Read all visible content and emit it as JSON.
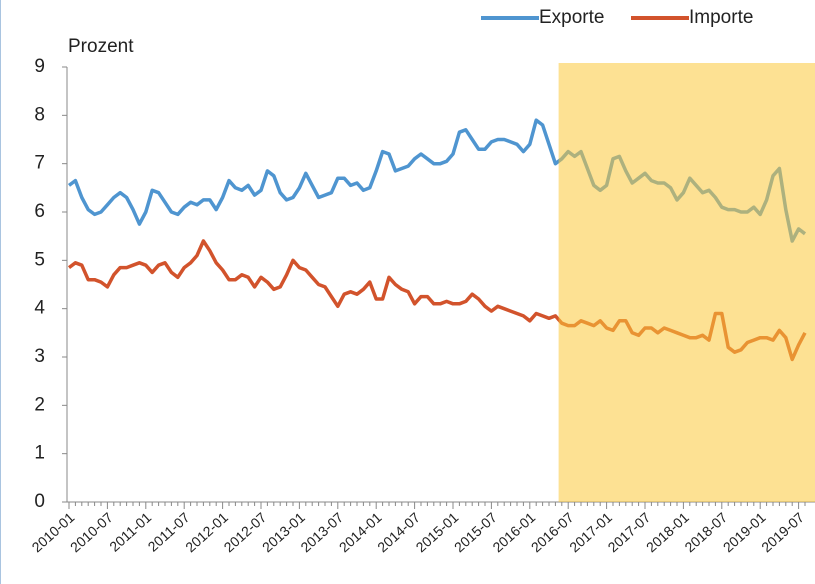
{
  "chart_data": {
    "type": "line",
    "y_label": "Prozent",
    "categories": [
      "2010-01",
      null,
      null,
      null,
      null,
      null,
      "2010-07",
      null,
      null,
      null,
      null,
      null,
      "2011-01",
      null,
      null,
      null,
      null,
      null,
      "2011-07",
      null,
      null,
      null,
      null,
      null,
      "2012-01",
      null,
      null,
      null,
      null,
      null,
      "2012-07",
      null,
      null,
      null,
      null,
      null,
      "2013-01",
      null,
      null,
      null,
      null,
      null,
      "2013-07",
      null,
      null,
      null,
      null,
      null,
      "2014-01",
      null,
      null,
      null,
      null,
      null,
      "2014-07",
      null,
      null,
      null,
      null,
      null,
      "2015-01",
      null,
      null,
      null,
      null,
      null,
      "2015-07",
      null,
      null,
      null,
      null,
      null,
      "2016-01",
      null,
      null,
      null,
      null,
      null,
      "2016-07",
      null,
      null,
      null,
      null,
      null,
      "2017-01",
      null,
      null,
      null,
      null,
      null,
      "2017-07",
      null,
      null,
      null,
      null,
      null,
      "2018-01",
      null,
      null,
      null,
      null,
      null,
      "2018-07",
      null,
      null,
      null,
      null,
      null,
      "2019-01",
      null,
      null,
      null,
      null,
      null,
      "2019-07",
      null
    ],
    "series": [
      {
        "name": "Exporte",
        "color": "#4f95d0",
        "values": [
          6.55,
          6.65,
          6.3,
          6.05,
          5.95,
          6.0,
          6.15,
          6.3,
          6.4,
          6.3,
          6.05,
          5.75,
          6.0,
          6.45,
          6.4,
          6.2,
          6.0,
          5.95,
          6.1,
          6.2,
          6.15,
          6.25,
          6.25,
          6.05,
          6.3,
          6.65,
          6.5,
          6.45,
          6.55,
          6.35,
          6.45,
          6.85,
          6.75,
          6.4,
          6.25,
          6.3,
          6.5,
          6.8,
          6.55,
          6.3,
          6.35,
          6.4,
          6.7,
          6.7,
          6.55,
          6.6,
          6.45,
          6.5,
          6.85,
          7.25,
          7.2,
          6.85,
          6.9,
          6.95,
          7.1,
          7.2,
          7.1,
          7.0,
          7.0,
          7.05,
          7.2,
          7.65,
          7.7,
          7.5,
          7.3,
          7.3,
          7.45,
          7.5,
          7.5,
          7.45,
          7.4,
          7.25,
          7.4,
          7.9,
          7.8,
          7.4,
          7.0,
          7.1,
          7.25,
          7.15,
          7.25,
          6.9,
          6.55,
          6.45,
          6.55,
          7.1,
          7.15,
          6.85,
          6.6,
          6.7,
          6.8,
          6.65,
          6.6,
          6.6,
          6.5,
          6.25,
          6.4,
          6.7,
          6.55,
          6.4,
          6.45,
          6.3,
          6.1,
          6.05,
          6.05,
          6.0,
          6.0,
          6.1,
          5.95,
          6.25,
          6.75,
          6.9,
          6.05,
          5.4,
          5.65,
          5.55
        ]
      },
      {
        "name": "Importe",
        "color": "#d2532c",
        "values": [
          4.85,
          4.95,
          4.9,
          4.6,
          4.6,
          4.55,
          4.45,
          4.7,
          4.85,
          4.85,
          4.9,
          4.95,
          4.9,
          4.75,
          4.9,
          4.95,
          4.75,
          4.65,
          4.85,
          4.95,
          5.1,
          5.4,
          5.2,
          4.95,
          4.8,
          4.6,
          4.6,
          4.7,
          4.65,
          4.45,
          4.65,
          4.55,
          4.4,
          4.45,
          4.7,
          5.0,
          4.85,
          4.8,
          4.65,
          4.5,
          4.45,
          4.25,
          4.05,
          4.3,
          4.35,
          4.3,
          4.4,
          4.55,
          4.2,
          4.2,
          4.65,
          4.5,
          4.4,
          4.35,
          4.1,
          4.25,
          4.25,
          4.1,
          4.1,
          4.15,
          4.1,
          4.1,
          4.15,
          4.3,
          4.2,
          4.05,
          3.95,
          4.05,
          4.0,
          3.95,
          3.9,
          3.85,
          3.75,
          3.9,
          3.85,
          3.8,
          3.85,
          3.7,
          3.65,
          3.65,
          3.75,
          3.7,
          3.65,
          3.75,
          3.6,
          3.55,
          3.75,
          3.75,
          3.5,
          3.45,
          3.6,
          3.6,
          3.5,
          3.6,
          3.55,
          3.5,
          3.45,
          3.4,
          3.4,
          3.45,
          3.35,
          3.9,
          3.9,
          3.2,
          3.1,
          3.15,
          3.3,
          3.35,
          3.4,
          3.4,
          3.35,
          3.55,
          3.4,
          2.95,
          3.25,
          3.5
        ]
      }
    ],
    "ylim": [
      0,
      9
    ],
    "yticks": [
      0,
      1,
      2,
      3,
      4,
      5,
      6,
      7,
      8,
      9
    ],
    "grid": false,
    "legend": "top-right",
    "highlight": {
      "from": 77,
      "color": "#fcc93a"
    }
  }
}
